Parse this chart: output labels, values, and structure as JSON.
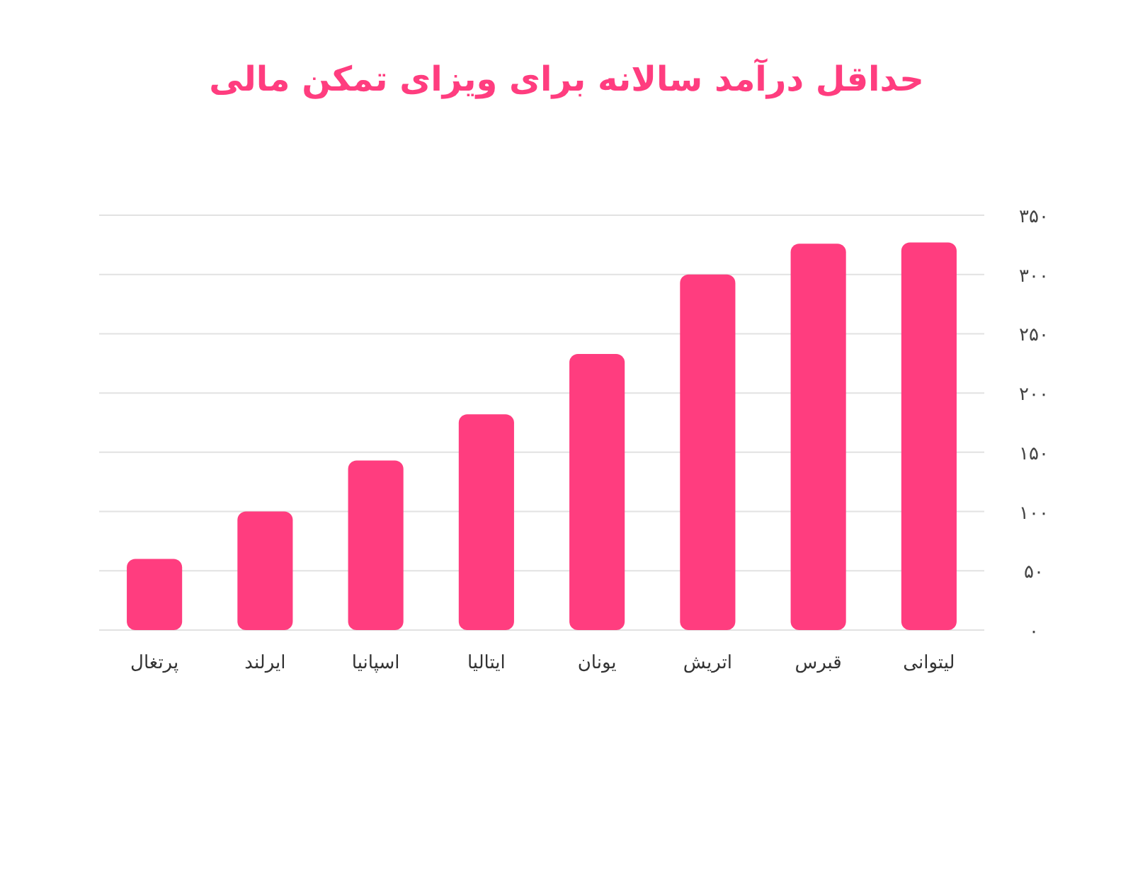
{
  "chart_data": {
    "type": "bar",
    "title": "حداقل درآمد سالانه برای ویزای تمکن مالی",
    "categories": [
      "پرتغال",
      "ایرلند",
      "اسپانیا",
      "ایتالیا",
      "یونان",
      "اتریش",
      "قبرس",
      "لیتوانی"
    ],
    "values": [
      60,
      100,
      143,
      182,
      233,
      300,
      326,
      327
    ],
    "color": "#ff3d7f",
    "ylim": [
      0,
      350
    ],
    "yticks": [
      {
        "value": 0,
        "label": "۰"
      },
      {
        "value": 50,
        "label": "۵۰"
      },
      {
        "value": 100,
        "label": "۱۰۰"
      },
      {
        "value": 150,
        "label": "۱۵۰"
      },
      {
        "value": 200,
        "label": "۲۰۰"
      },
      {
        "value": 250,
        "label": "۲۵۰"
      },
      {
        "value": 300,
        "label": "۳۰۰"
      },
      {
        "value": 350,
        "label": "۳۵۰"
      }
    ],
    "grid": "y"
  }
}
